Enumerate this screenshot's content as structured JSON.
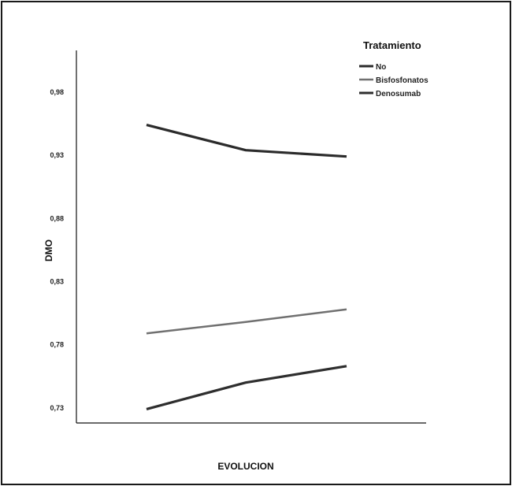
{
  "chart_data": {
    "type": "line",
    "title": "",
    "xlabel": "EVOLUCION",
    "ylabel": "DMO",
    "categories": [
      "",
      "",
      ""
    ],
    "yticks": [
      {
        "value": 0.73,
        "label": "0,73"
      },
      {
        "value": 0.78,
        "label": "0,78"
      },
      {
        "value": 0.83,
        "label": "0,83"
      },
      {
        "value": 0.88,
        "label": "0,88"
      },
      {
        "value": 0.93,
        "label": "0,93"
      },
      {
        "value": 0.98,
        "label": "0,98"
      }
    ],
    "ylim": [
      0.718,
      1.013
    ],
    "grid": false,
    "legend": {
      "title": "Tratamiento",
      "placement": "top-right"
    },
    "series": [
      {
        "name": "No",
        "values": [
          0.954,
          0.934,
          0.929
        ],
        "color": "#2b2b2b"
      },
      {
        "name": "Bisfosfonatos",
        "values": [
          0.789,
          0.798,
          0.808
        ],
        "color": "#707070"
      },
      {
        "name": "Denosumab",
        "values": [
          0.729,
          0.75,
          0.763
        ],
        "color": "#2e2e2e"
      }
    ]
  }
}
